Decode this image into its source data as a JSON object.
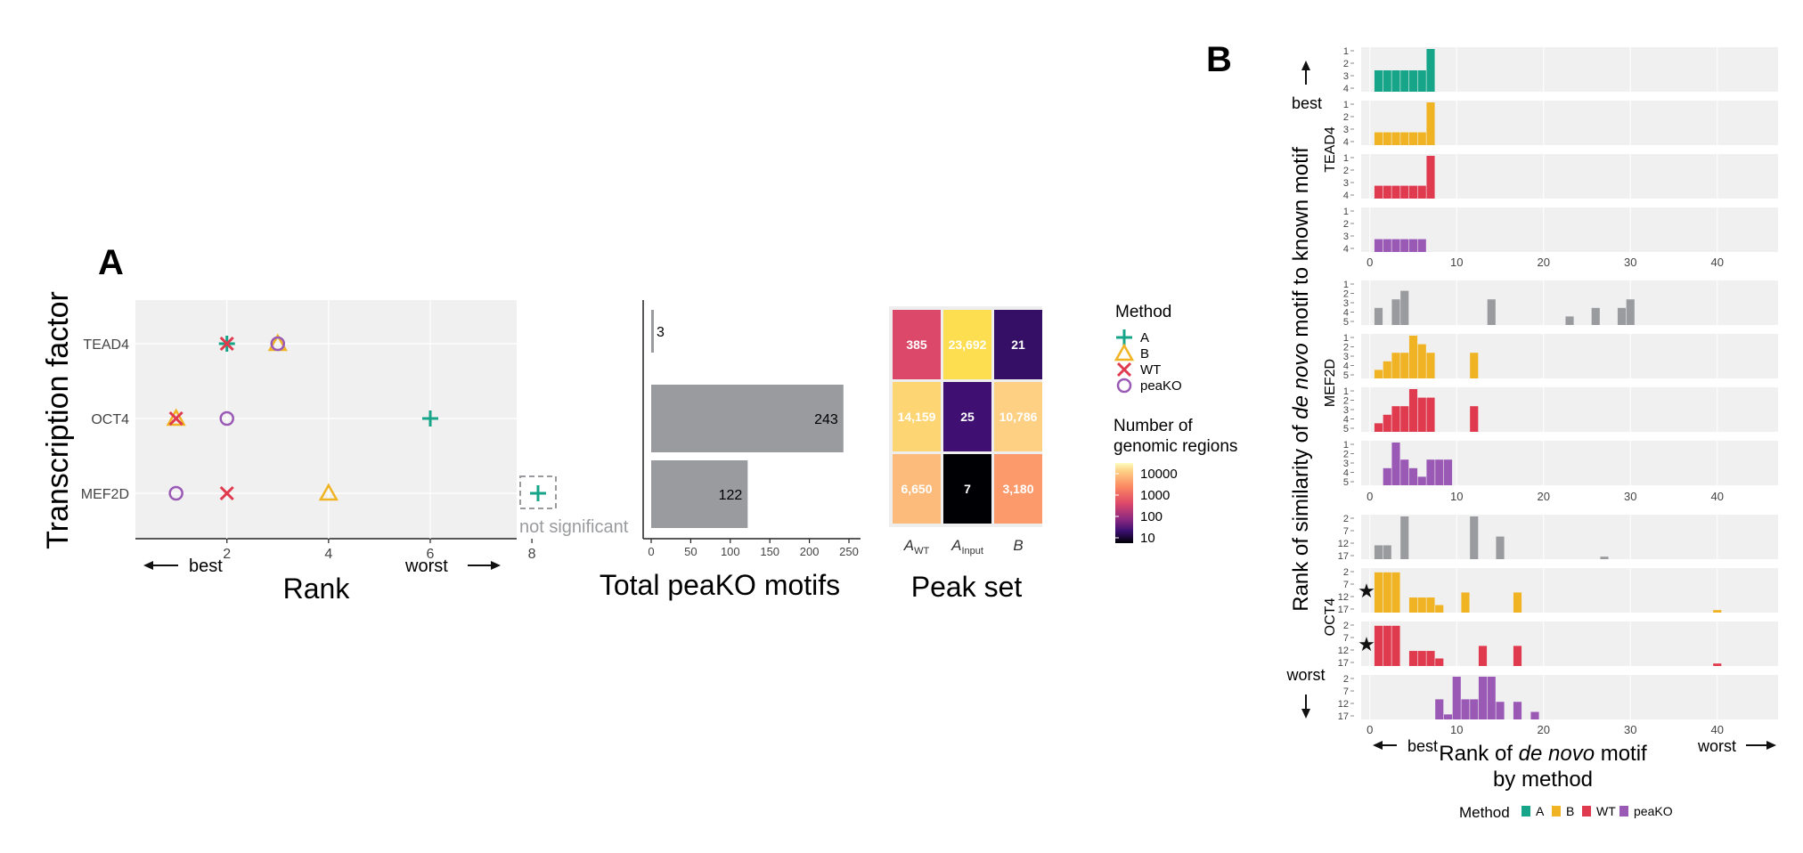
{
  "colors": {
    "A": "#17a589",
    "B": "#f0b323",
    "WT": "#e03a4e",
    "peaKO": "#9b59b6",
    "gray": "#999b9e",
    "panel_bg": "#f0f0f1"
  },
  "panel_a": {
    "label": "A",
    "rank_plot": {
      "ylabel": "Transcription factor",
      "xlabel": "Rank",
      "x_ticks": [
        "2",
        "4",
        "6",
        "8"
      ],
      "xlim": [
        0.2,
        7.7
      ],
      "best_label": "best",
      "worst_label": "worst",
      "not_significant_label": "not significant"
    },
    "total_plot": {
      "xlabel": "Total peaKO motifs",
      "x_ticks": [
        "0",
        "50",
        "100",
        "150",
        "200",
        "250"
      ],
      "xlim": [
        0,
        250
      ]
    },
    "heatmap": {
      "xlabel": "Peak set",
      "col_labels": [
        {
          "main": "A",
          "sub": "WT"
        },
        {
          "main": "A",
          "sub": "Input"
        },
        {
          "main": "B",
          "sub": ""
        }
      ]
    },
    "legend_method": {
      "title": "Method",
      "items": [
        "A",
        "B",
        "WT",
        "peaKO"
      ]
    },
    "legend_heat": {
      "title_line1": "Number of",
      "title_line2": "genomic regions",
      "ticks": [
        "10000",
        "1000",
        "100",
        "10"
      ]
    }
  },
  "panel_b": {
    "label": "B",
    "ylabel_pre": "Rank of similarity of ",
    "ylabel_it": "de novo",
    "ylabel_post": " motif to known motif",
    "xlabel_line1_pre": "Rank of ",
    "xlabel_line1_it": "de novo",
    "xlabel_line1_post": " motif",
    "xlabel_line2": "by method",
    "best_label": "best",
    "worst_label": "worst",
    "x_ticks": [
      "0",
      "10",
      "20",
      "30",
      "40"
    ],
    "legend_title": "Method",
    "legend_items": [
      "A",
      "B",
      "WT",
      "peaKO"
    ],
    "groups": [
      {
        "tf": "TEAD4",
        "y_ticks": [
          "1",
          "2",
          "3",
          "4"
        ]
      },
      {
        "tf": "MEF2D",
        "y_ticks": [
          "1",
          "2",
          "3",
          "4",
          "5"
        ]
      },
      {
        "tf": "OCT4",
        "y_ticks": [
          "2",
          "7",
          "12",
          "17"
        ]
      }
    ]
  },
  "chart_data": [
    {
      "type": "scatter",
      "title": "",
      "xlabel": "Rank",
      "ylabel": "Transcription factor",
      "categories": [
        "TEAD4",
        "OCT4",
        "MEF2D"
      ],
      "xlim": [
        0.2,
        7.7
      ],
      "series": [
        {
          "name": "A",
          "marker": "plus",
          "points": [
            {
              "y": "TEAD4",
              "x": 2
            },
            {
              "y": "OCT4",
              "x": 6
            },
            {
              "y": "MEF2D",
              "x": "not significant"
            }
          ]
        },
        {
          "name": "B",
          "marker": "triangle",
          "points": [
            {
              "y": "TEAD4",
              "x": 3
            },
            {
              "y": "OCT4",
              "x": 1
            },
            {
              "y": "MEF2D",
              "x": 4
            }
          ]
        },
        {
          "name": "WT",
          "marker": "x",
          "points": [
            {
              "y": "TEAD4",
              "x": 2
            },
            {
              "y": "OCT4",
              "x": 1
            },
            {
              "y": "MEF2D",
              "x": 2
            }
          ]
        },
        {
          "name": "peaKO",
          "marker": "circle",
          "points": [
            {
              "y": "TEAD4",
              "x": 3
            },
            {
              "y": "OCT4",
              "x": 2
            },
            {
              "y": "MEF2D",
              "x": 1
            }
          ]
        }
      ]
    },
    {
      "type": "bar",
      "xlabel": "Total peaKO motifs",
      "categories": [
        "TEAD4",
        "OCT4",
        "MEF2D"
      ],
      "values": [
        3,
        243,
        122
      ],
      "xlim": [
        0,
        250
      ]
    },
    {
      "type": "heatmap",
      "xlabel": "Peak set",
      "rows": [
        "TEAD4",
        "OCT4",
        "MEF2D"
      ],
      "cols": [
        "A_WT",
        "A_Input",
        "B"
      ],
      "values": [
        [
          385,
          23692,
          21
        ],
        [
          14159,
          25,
          10786
        ],
        [
          6650,
          7,
          3180
        ]
      ],
      "value_labels": [
        [
          "385",
          "23,692",
          "21"
        ],
        [
          "14,159",
          "25",
          "10,786"
        ],
        [
          "6,650",
          "7",
          "3,180"
        ]
      ],
      "color_range": [
        7,
        23692
      ]
    },
    {
      "type": "bar",
      "xlabel": "Rank of de novo motif by method",
      "ylabel": "Rank of similarity of de novo motif to known motif",
      "xlim": [
        -1,
        47
      ],
      "panels": [
        {
          "tf": "TEAD4",
          "method": "A",
          "ymax": 4,
          "starred": false,
          "bars": [
            [
              1,
              2
            ],
            [
              2,
              2
            ],
            [
              3,
              2
            ],
            [
              4,
              2
            ],
            [
              5,
              2
            ],
            [
              6,
              2
            ],
            [
              7,
              4
            ]
          ]
        },
        {
          "tf": "TEAD4",
          "method": "B",
          "ymax": 4,
          "starred": false,
          "bars": [
            [
              1,
              1.2
            ],
            [
              2,
              1.2
            ],
            [
              3,
              1.2
            ],
            [
              4,
              1.2
            ],
            [
              5,
              1.2
            ],
            [
              6,
              1.2
            ],
            [
              7,
              4
            ]
          ]
        },
        {
          "tf": "TEAD4",
          "method": "WT",
          "ymax": 4,
          "starred": false,
          "bars": [
            [
              1,
              1.2
            ],
            [
              2,
              1.2
            ],
            [
              3,
              1.2
            ],
            [
              4,
              1.2
            ],
            [
              5,
              1.2
            ],
            [
              6,
              1.2
            ],
            [
              7,
              4
            ]
          ]
        },
        {
          "tf": "TEAD4",
          "method": "peaKO",
          "ymax": 4,
          "starred": false,
          "bars": [
            [
              1,
              1.2
            ],
            [
              2,
              1.2
            ],
            [
              3,
              1.2
            ],
            [
              4,
              1.2
            ],
            [
              5,
              1.2
            ],
            [
              6,
              1.2
            ]
          ]
        },
        {
          "tf": "MEF2D",
          "method": "A",
          "ymax": 5,
          "starred": false,
          "gray": true,
          "bars": [
            [
              1,
              2
            ],
            [
              3,
              3
            ],
            [
              4,
              4
            ],
            [
              14,
              3
            ],
            [
              23,
              1
            ],
            [
              26,
              2
            ],
            [
              29,
              2
            ],
            [
              30,
              3
            ]
          ]
        },
        {
          "tf": "MEF2D",
          "method": "B",
          "ymax": 5,
          "starred": false,
          "bars": [
            [
              1,
              1
            ],
            [
              2,
              2
            ],
            [
              3,
              3
            ],
            [
              4,
              3
            ],
            [
              5,
              5
            ],
            [
              6,
              4
            ],
            [
              7,
              3
            ],
            [
              12,
              3
            ]
          ]
        },
        {
          "tf": "MEF2D",
          "method": "WT",
          "ymax": 5,
          "starred": false,
          "bars": [
            [
              1,
              1
            ],
            [
              2,
              2
            ],
            [
              3,
              3
            ],
            [
              4,
              3
            ],
            [
              5,
              5
            ],
            [
              6,
              4
            ],
            [
              7,
              4
            ],
            [
              12,
              3
            ]
          ]
        },
        {
          "tf": "MEF2D",
          "method": "peaKO",
          "ymax": 5,
          "starred": false,
          "bars": [
            [
              2,
              2
            ],
            [
              3,
              5
            ],
            [
              4,
              3
            ],
            [
              5,
              2
            ],
            [
              6,
              1
            ],
            [
              7,
              3
            ],
            [
              8,
              3
            ],
            [
              9,
              3
            ]
          ]
        },
        {
          "tf": "OCT4",
          "method": "A",
          "ymax": 17,
          "starred": false,
          "gray": true,
          "bars": [
            [
              1,
              5.5
            ],
            [
              2,
              5.5
            ],
            [
              4,
              17
            ],
            [
              12,
              17
            ],
            [
              15,
              9
            ],
            [
              27,
              1
            ]
          ]
        },
        {
          "tf": "OCT4",
          "method": "B",
          "ymax": 17,
          "starred": true,
          "bars": [
            [
              1,
              16
            ],
            [
              2,
              16
            ],
            [
              3,
              16
            ],
            [
              5,
              6
            ],
            [
              6,
              6
            ],
            [
              7,
              6
            ],
            [
              8,
              3
            ],
            [
              11,
              8
            ],
            [
              17,
              8
            ],
            [
              40,
              1
            ]
          ]
        },
        {
          "tf": "OCT4",
          "method": "WT",
          "ymax": 17,
          "starred": true,
          "bars": [
            [
              1,
              16
            ],
            [
              2,
              16
            ],
            [
              3,
              16
            ],
            [
              5,
              6
            ],
            [
              6,
              6
            ],
            [
              7,
              6
            ],
            [
              8,
              3
            ],
            [
              13,
              8
            ],
            [
              17,
              8
            ],
            [
              40,
              1
            ]
          ]
        },
        {
          "tf": "OCT4",
          "method": "peaKO",
          "ymax": 17,
          "starred": false,
          "bars": [
            [
              8,
              8
            ],
            [
              9,
              2
            ],
            [
              10,
              17
            ],
            [
              11,
              8
            ],
            [
              12,
              8
            ],
            [
              13,
              17
            ],
            [
              14,
              17
            ],
            [
              15,
              7
            ],
            [
              17,
              7
            ],
            [
              19,
              3
            ]
          ]
        }
      ]
    }
  ]
}
